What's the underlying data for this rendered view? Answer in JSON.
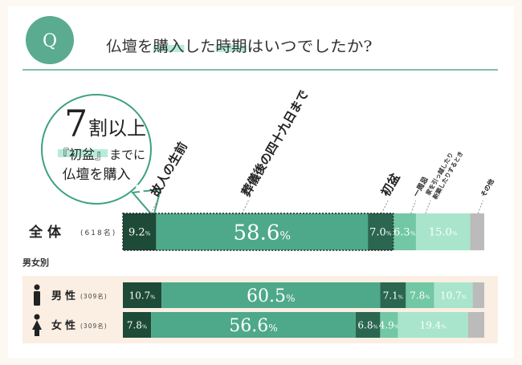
{
  "header": {
    "q_badge": "Q",
    "question_parts": [
      {
        "text": "仏壇を",
        "hl": false
      },
      {
        "text": "購入",
        "hl": true
      },
      {
        "text": "した",
        "hl": false
      },
      {
        "text": "時期",
        "hl": true
      },
      {
        "text": "はいつでしたか?",
        "hl": false
      }
    ]
  },
  "callout": {
    "big": "7",
    "big_suffix": "割以上",
    "line2_a": "『初盆』",
    "line2_b": "までに",
    "line3": "仏壇を購入"
  },
  "colors": {
    "teal": "#3ea082",
    "header_teal": "#5aab8f",
    "bars": [
      "#1e4a38",
      "#4ea88a",
      "#2a6650",
      "#72c7a4",
      "#a8e5cc",
      "#bbbbbb"
    ],
    "gender_bg": "#fbeee2",
    "highlight": "#b8ecd9"
  },
  "chart_data": {
    "type": "bar",
    "orientation": "horizontal-stacked-100",
    "categories": [
      "故人の生前",
      "葬儀後の四十九日まで",
      "初盆",
      "一周忌",
      "家を引っ越したり新築したりするとき",
      "その他"
    ],
    "rows": [
      {
        "label": "全体",
        "n": "(618名)",
        "icon": "",
        "values": [
          9.2,
          58.6,
          7.0,
          6.3,
          15.0,
          3.9
        ],
        "labels": [
          "9.2%",
          "58.6%",
          "7.0%",
          "6.3%",
          "15.0%",
          ""
        ]
      },
      {
        "label": "男性",
        "n": "(309名)",
        "icon": "male-icon",
        "values": [
          10.7,
          60.5,
          7.1,
          7.8,
          10.7,
          3.2
        ],
        "labels": [
          "10.7%",
          "60.5%",
          "7.1%",
          "7.8%",
          "10.7%",
          ""
        ]
      },
      {
        "label": "女性",
        "n": "(309名)",
        "icon": "female-icon",
        "values": [
          7.8,
          56.6,
          6.8,
          4.9,
          19.4,
          4.5
        ],
        "labels": [
          "7.8%",
          "56.6%",
          "6.8%",
          "4.9%",
          "19.4%",
          ""
        ]
      }
    ],
    "group_label": "男女別"
  }
}
